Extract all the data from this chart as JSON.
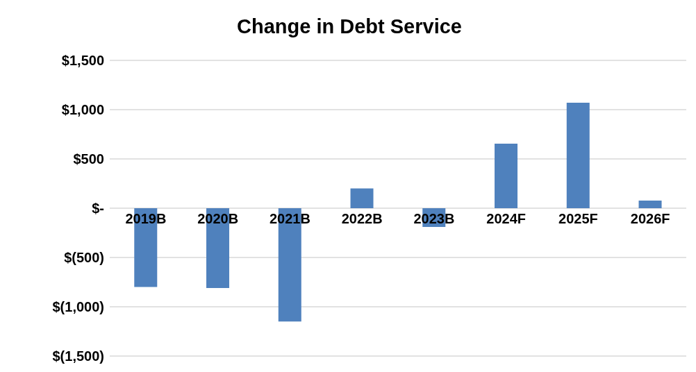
{
  "chart_data": {
    "type": "bar",
    "title": "Change in Debt Service",
    "categories": [
      "2019B",
      "2020B",
      "2021B",
      "2022B",
      "2023B",
      "2024F",
      "2025F",
      "2026F"
    ],
    "values": [
      -800,
      -810,
      -1150,
      200,
      -190,
      655,
      1070,
      77
    ],
    "color": "#4f81bd",
    "ylim": [
      -1500,
      1500
    ],
    "yticks": [
      {
        "value": 1500,
        "label": "$1,500"
      },
      {
        "value": 1000,
        "label": "$1,000"
      },
      {
        "value": 500,
        "label": "$500"
      },
      {
        "value": 0,
        "label": "$-"
      },
      {
        "value": -500,
        "label": "$(500)"
      },
      {
        "value": -1000,
        "label": "$(1,000)"
      },
      {
        "value": -1500,
        "label": "$(1,500)"
      }
    ],
    "grid": "y"
  }
}
